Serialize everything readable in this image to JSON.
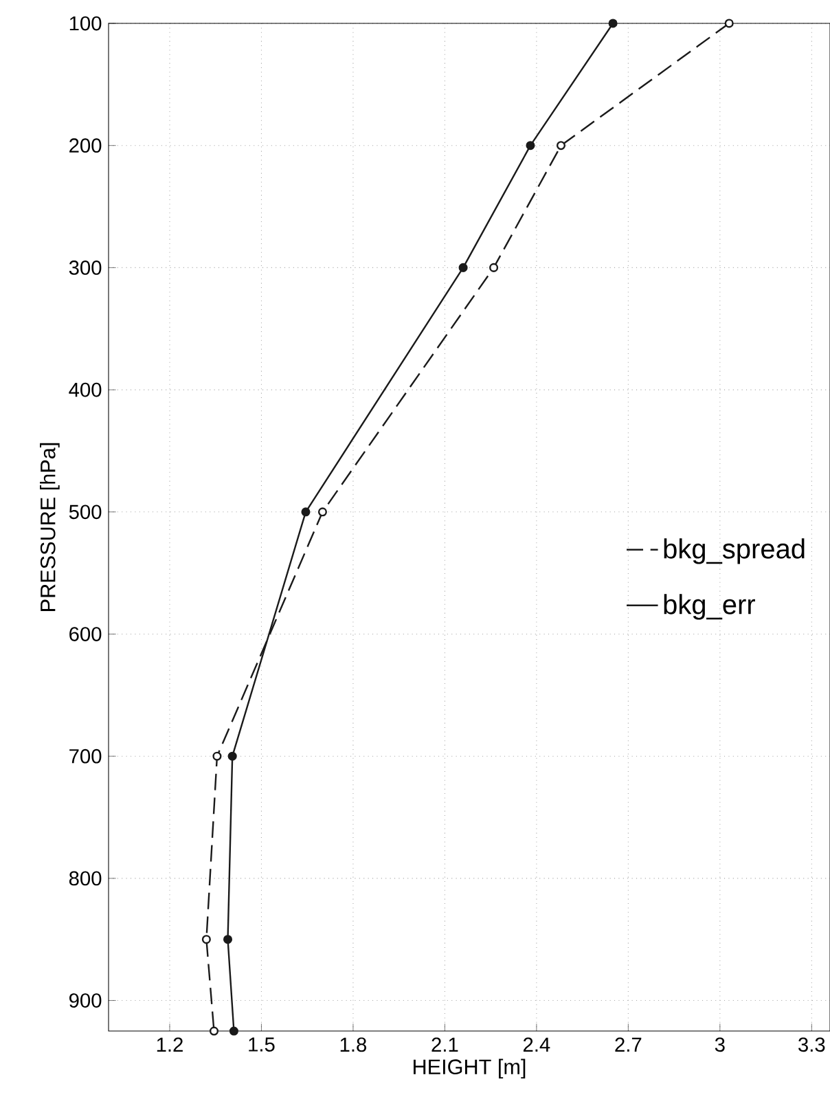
{
  "chart_data": {
    "type": "line",
    "xlabel": "HEIGHT [m]",
    "ylabel": "PRESSURE [hPa]",
    "xlim": [
      1.0,
      3.36
    ],
    "xticks": [
      1.2,
      1.5,
      1.8,
      2.1,
      2.4,
      2.7,
      3,
      3.3
    ],
    "ylim": [
      925,
      100
    ],
    "yticks": [
      100,
      200,
      300,
      400,
      500,
      600,
      700,
      800,
      900
    ],
    "grid": true,
    "legend": "right",
    "marker": "circle",
    "series": [
      {
        "name": "bkg_spread",
        "color": "#1a1a1a",
        "line_style": "dashed",
        "x": [
          3.03,
          2.48,
          2.26,
          1.7,
          1.355,
          1.32,
          1.345
        ],
        "values": [
          100,
          200,
          300,
          500,
          700,
          850,
          925
        ]
      },
      {
        "name": "bkg_err",
        "color": "#1a1a1a",
        "line_style": "solid",
        "x": [
          2.65,
          2.38,
          2.16,
          1.645,
          1.405,
          1.39,
          1.41
        ],
        "values": [
          100,
          200,
          300,
          500,
          700,
          850,
          925
        ]
      }
    ]
  }
}
